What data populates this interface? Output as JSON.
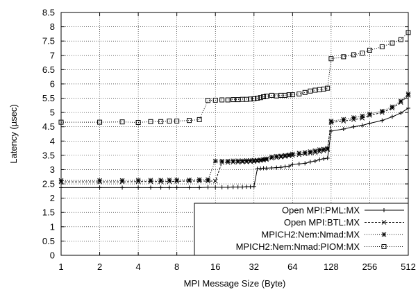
{
  "chart_data": {
    "type": "line",
    "xlabel": "MPI Message Size (Byte)",
    "ylabel": "Latency (µsec)",
    "xscale": "log2",
    "xlim": [
      1,
      512
    ],
    "ylim": [
      0,
      8.5
    ],
    "x_ticks": [
      1,
      2,
      4,
      8,
      16,
      32,
      64,
      128,
      256,
      512
    ],
    "y_ticks": [
      0,
      0.5,
      1,
      1.5,
      2,
      2.5,
      3,
      3.5,
      4,
      4.5,
      5,
      5.5,
      6,
      6.5,
      7,
      7.5,
      8,
      8.5
    ],
    "grid": true,
    "legend_position": "bottom-right",
    "series": [
      {
        "name": "Open MPI:PML:MX",
        "marker": "plus",
        "line": "solid",
        "color": "#000000",
        "x": [
          1,
          2,
          3,
          4,
          5,
          6,
          7,
          8,
          10,
          12,
          14,
          16,
          18,
          20,
          22,
          24,
          26,
          28,
          30,
          32,
          34,
          36,
          38,
          40,
          44,
          48,
          52,
          56,
          60,
          64,
          72,
          80,
          88,
          96,
          104,
          112,
          120,
          128,
          160,
          192,
          224,
          256,
          320,
          384,
          448,
          512
        ],
        "y": [
          2.37,
          2.37,
          2.37,
          2.37,
          2.37,
          2.37,
          2.37,
          2.37,
          2.37,
          2.37,
          2.38,
          2.38,
          2.38,
          2.38,
          2.39,
          2.39,
          2.39,
          2.4,
          2.4,
          2.41,
          3.03,
          3.04,
          3.05,
          3.05,
          3.06,
          3.07,
          3.08,
          3.1,
          3.12,
          3.18,
          3.2,
          3.22,
          3.27,
          3.3,
          3.35,
          3.38,
          3.4,
          4.35,
          4.42,
          4.5,
          4.55,
          4.62,
          4.72,
          4.85,
          4.98,
          5.15
        ]
      },
      {
        "name": "Open MPI:BTL:MX",
        "marker": "cross",
        "line": "dashed",
        "color": "#000000",
        "x": [
          1,
          2,
          3,
          4,
          5,
          6,
          7,
          8,
          10,
          12,
          14,
          16,
          18,
          20,
          22,
          24,
          26,
          28,
          30,
          32,
          34,
          36,
          38,
          40,
          44,
          48,
          52,
          56,
          60,
          64,
          72,
          80,
          88,
          96,
          104,
          112,
          120,
          128,
          160,
          192,
          224,
          256,
          320,
          384,
          448,
          512
        ],
        "y": [
          2.57,
          2.57,
          2.57,
          2.58,
          2.58,
          2.58,
          2.58,
          2.59,
          2.6,
          2.6,
          2.6,
          2.6,
          3.25,
          3.25,
          3.26,
          3.26,
          3.27,
          3.27,
          3.28,
          3.28,
          3.3,
          3.32,
          3.33,
          3.35,
          3.4,
          3.42,
          3.44,
          3.46,
          3.48,
          3.5,
          3.52,
          3.55,
          3.58,
          3.6,
          3.63,
          3.66,
          3.7,
          4.65,
          4.7,
          4.75,
          4.8,
          4.9,
          5.0,
          5.15,
          5.35,
          5.6
        ]
      },
      {
        "name": "MPICH2:Nem:Nmad:MX",
        "marker": "star",
        "line": "dotted",
        "color": "#000000",
        "x": [
          1,
          2,
          3,
          4,
          5,
          6,
          7,
          8,
          10,
          12,
          14,
          16,
          18,
          20,
          22,
          24,
          26,
          28,
          30,
          32,
          34,
          36,
          38,
          40,
          44,
          48,
          52,
          56,
          60,
          64,
          72,
          80,
          88,
          96,
          104,
          112,
          120,
          128,
          160,
          192,
          224,
          256,
          320,
          384,
          448,
          512
        ],
        "y": [
          2.62,
          2.62,
          2.62,
          2.63,
          2.63,
          2.63,
          2.64,
          2.64,
          2.64,
          2.65,
          2.65,
          3.3,
          3.3,
          3.3,
          3.31,
          3.31,
          3.31,
          3.32,
          3.32,
          3.33,
          3.33,
          3.34,
          3.36,
          3.38,
          3.45,
          3.47,
          3.48,
          3.5,
          3.52,
          3.55,
          3.58,
          3.6,
          3.63,
          3.66,
          3.7,
          3.72,
          3.75,
          4.7,
          4.76,
          4.82,
          4.88,
          4.95,
          5.05,
          5.2,
          5.4,
          5.65
        ]
      },
      {
        "name": "MPICH2:Nem:Nmad:PIOM:MX",
        "marker": "square",
        "line": "dotted",
        "color": "#000000",
        "x": [
          1,
          2,
          3,
          4,
          5,
          6,
          7,
          8,
          10,
          12,
          14,
          16,
          18,
          20,
          22,
          24,
          26,
          28,
          30,
          32,
          34,
          36,
          38,
          40,
          44,
          48,
          52,
          56,
          60,
          64,
          72,
          80,
          88,
          96,
          104,
          112,
          120,
          128,
          160,
          192,
          224,
          256,
          320,
          384,
          448,
          512
        ],
        "y": [
          4.66,
          4.66,
          4.67,
          4.65,
          4.68,
          4.68,
          4.7,
          4.7,
          4.72,
          4.75,
          5.42,
          5.43,
          5.44,
          5.44,
          5.45,
          5.45,
          5.46,
          5.46,
          5.47,
          5.48,
          5.5,
          5.52,
          5.55,
          5.57,
          5.6,
          5.58,
          5.6,
          5.6,
          5.62,
          5.62,
          5.65,
          5.7,
          5.75,
          5.78,
          5.8,
          5.82,
          5.85,
          6.88,
          6.95,
          7.02,
          7.08,
          7.18,
          7.3,
          7.43,
          7.55,
          7.8
        ]
      }
    ]
  }
}
